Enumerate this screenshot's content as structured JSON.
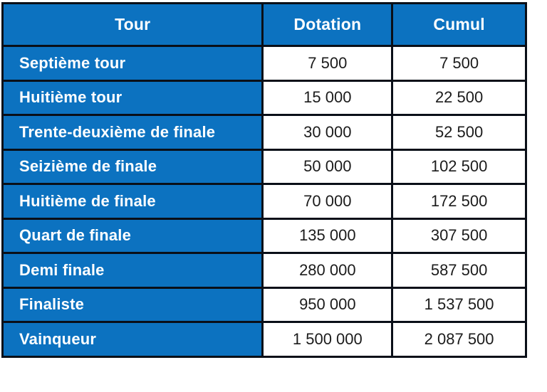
{
  "colors": {
    "blue": "#0c72c0",
    "border": "#0a0f18",
    "header_text": "#ffffff",
    "number_text": "#1b1b1b"
  },
  "table": {
    "columns": [
      "Tour",
      "Dotation",
      "Cumul"
    ],
    "rows": [
      {
        "tour": "Septième tour",
        "dotation": "7 500",
        "cumul": "7 500"
      },
      {
        "tour": "Huitième tour",
        "dotation": "15 000",
        "cumul": "22 500"
      },
      {
        "tour": "Trente-deuxième de finale",
        "dotation": "30 000",
        "cumul": "52 500"
      },
      {
        "tour": "Seizième de finale",
        "dotation": "50 000",
        "cumul": "102 500"
      },
      {
        "tour": "Huitième de finale",
        "dotation": "70 000",
        "cumul": "172 500"
      },
      {
        "tour": "Quart de finale",
        "dotation": "135 000",
        "cumul": "307 500"
      },
      {
        "tour": "Demi finale",
        "dotation": "280 000",
        "cumul": "587 500"
      },
      {
        "tour": "Finaliste",
        "dotation": "950 000",
        "cumul": "1 537 500"
      },
      {
        "tour": "Vainqueur",
        "dotation": "1 500 000",
        "cumul": "2 087 500"
      }
    ]
  }
}
